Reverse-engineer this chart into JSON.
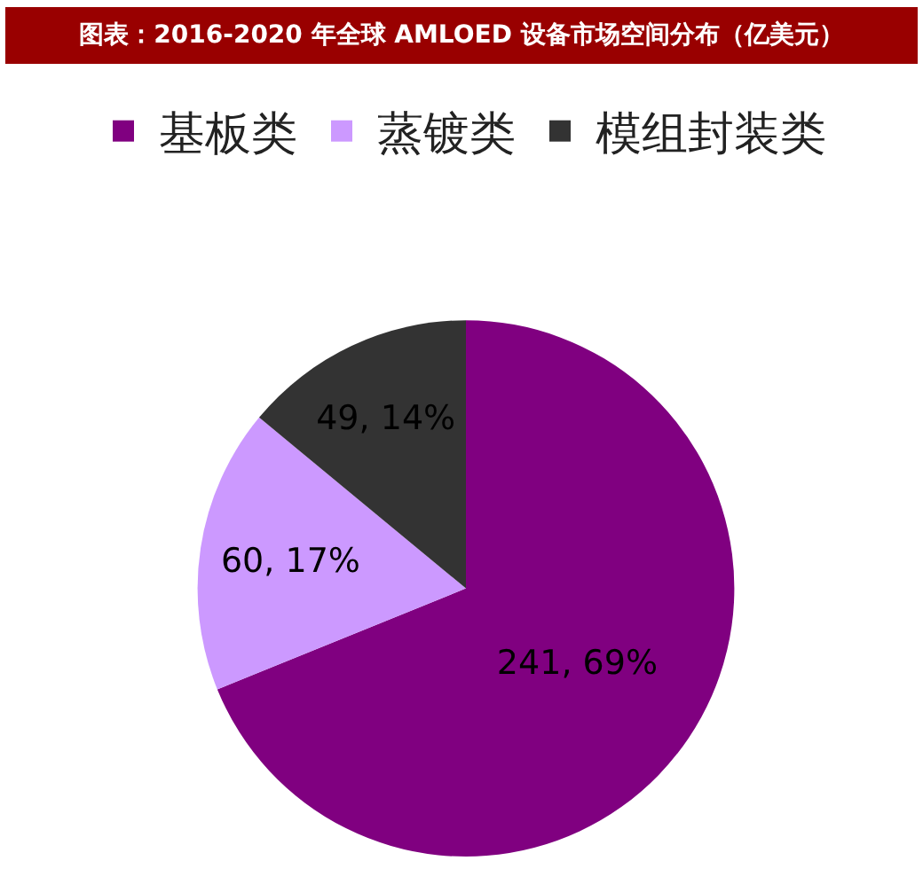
{
  "chart_data": {
    "type": "pie",
    "title": "图表：2016-2020 年全球 AMLOED 设备市场空间分布（亿美元）",
    "categories": [
      "基板类",
      "蒸镀类",
      "模组封装类"
    ],
    "values": [
      241,
      60,
      49
    ],
    "colors": [
      "#800080",
      "#cc99ff",
      "#333333"
    ],
    "value_labels": [
      "241, 69%",
      "60, 17%",
      "49, 14%"
    ],
    "legend": "top"
  }
}
